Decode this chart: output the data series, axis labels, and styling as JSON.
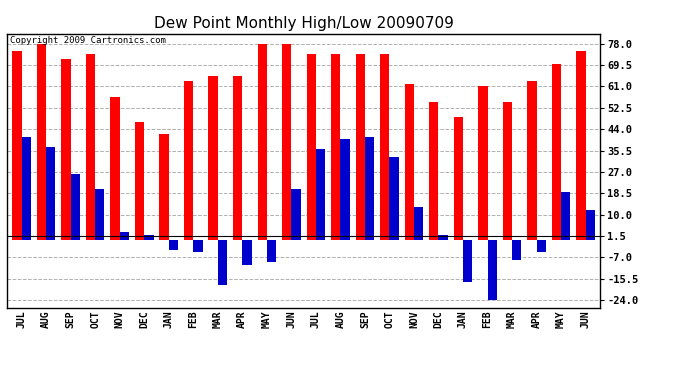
{
  "title": "Dew Point Monthly High/Low 20090709",
  "copyright": "Copyright 2009 Cartronics.com",
  "months": [
    "JUL",
    "AUG",
    "SEP",
    "OCT",
    "NOV",
    "DEC",
    "JAN",
    "FEB",
    "MAR",
    "APR",
    "MAY",
    "JUN",
    "JUL",
    "AUG",
    "SEP",
    "OCT",
    "NOV",
    "DEC",
    "JAN",
    "FEB",
    "MAR",
    "APR",
    "MAY",
    "JUN"
  ],
  "highs": [
    75,
    78,
    72,
    74,
    57,
    47,
    42,
    63,
    65,
    65,
    78,
    78,
    74,
    74,
    74,
    74,
    62,
    55,
    49,
    61,
    55,
    63,
    70,
    75
  ],
  "lows": [
    41,
    37,
    26,
    20,
    3,
    2,
    -4,
    -5,
    -18,
    -10,
    -9,
    20,
    36,
    40,
    41,
    33,
    13,
    2,
    -17,
    -24,
    -8,
    -5,
    19,
    12
  ],
  "ylim_min": -27,
  "ylim_max": 82,
  "yticks": [
    78.0,
    69.5,
    61.0,
    52.5,
    44.0,
    35.5,
    27.0,
    18.5,
    10.0,
    1.5,
    -7.0,
    -15.5,
    -24.0
  ],
  "high_color": "#ff0000",
  "low_color": "#0000cc",
  "background_color": "#ffffff",
  "grid_color": "#b0b0b0",
  "bar_width": 0.38,
  "title_fontsize": 11
}
